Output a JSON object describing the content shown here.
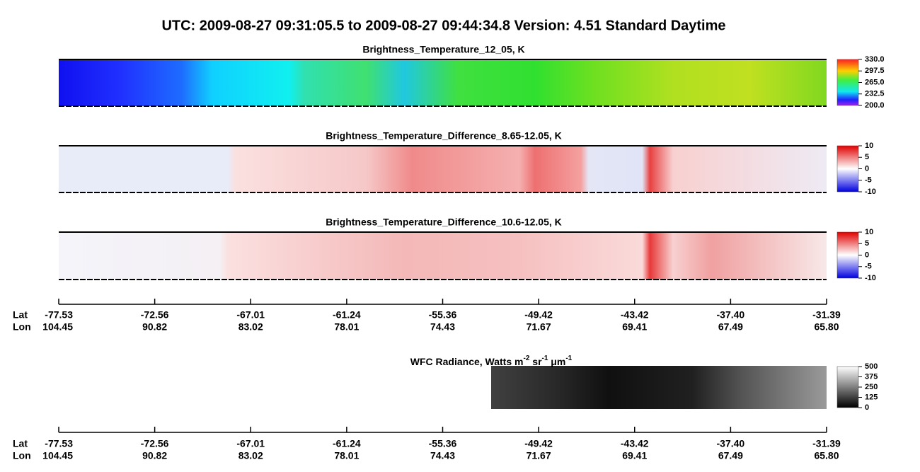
{
  "title": "UTC:  2009-08-27   09:31:05.5  to  2009-08-27   09:44:34.8    Version: 4.51  Standard Daytime",
  "panels": [
    {
      "title": "Brightness_Temperature_12_05, K",
      "colorbar": {
        "lim": [
          200,
          330
        ],
        "ticks": [
          {
            "value": 330,
            "label": "330.0"
          },
          297.5,
          {
            "value": 265,
            "label": "265.0"
          },
          232.5,
          {
            "value": 200,
            "label": "200.0"
          }
        ]
      }
    },
    {
      "title": "Brightness_Temperature_Difference_8.65-12.05, K",
      "colorbar": {
        "lim": [
          -10,
          10
        ],
        "ticks": [
          10,
          5,
          0,
          -5,
          -10
        ]
      }
    },
    {
      "title": "Brightness_Temperature_Difference_10.6-12.05, K",
      "colorbar": {
        "lim": [
          -10,
          10
        ],
        "ticks": [
          10,
          5,
          0,
          -5,
          -10
        ]
      }
    }
  ],
  "wfc": {
    "title": [
      "WFC Radiance, Watts m",
      "-2",
      " sr",
      "-1",
      " μm",
      "-1"
    ],
    "colorbar": {
      "lim": [
        0,
        500
      ],
      "ticks": [
        500,
        375,
        250,
        125,
        0
      ]
    }
  },
  "axis": {
    "lat_label": "Lat",
    "lon_label": "Lon",
    "lat": [
      -77.53,
      -72.56,
      -67.01,
      -61.24,
      -55.36,
      -49.42,
      -43.42,
      {
        "value": -37.4,
        "label": "-37.40"
      },
      -31.39
    ],
    "lon": [
      104.45,
      90.82,
      83.02,
      78.01,
      74.43,
      71.67,
      69.41,
      67.49,
      {
        "value": 65.8,
        "label": "65.80"
      }
    ]
  }
}
